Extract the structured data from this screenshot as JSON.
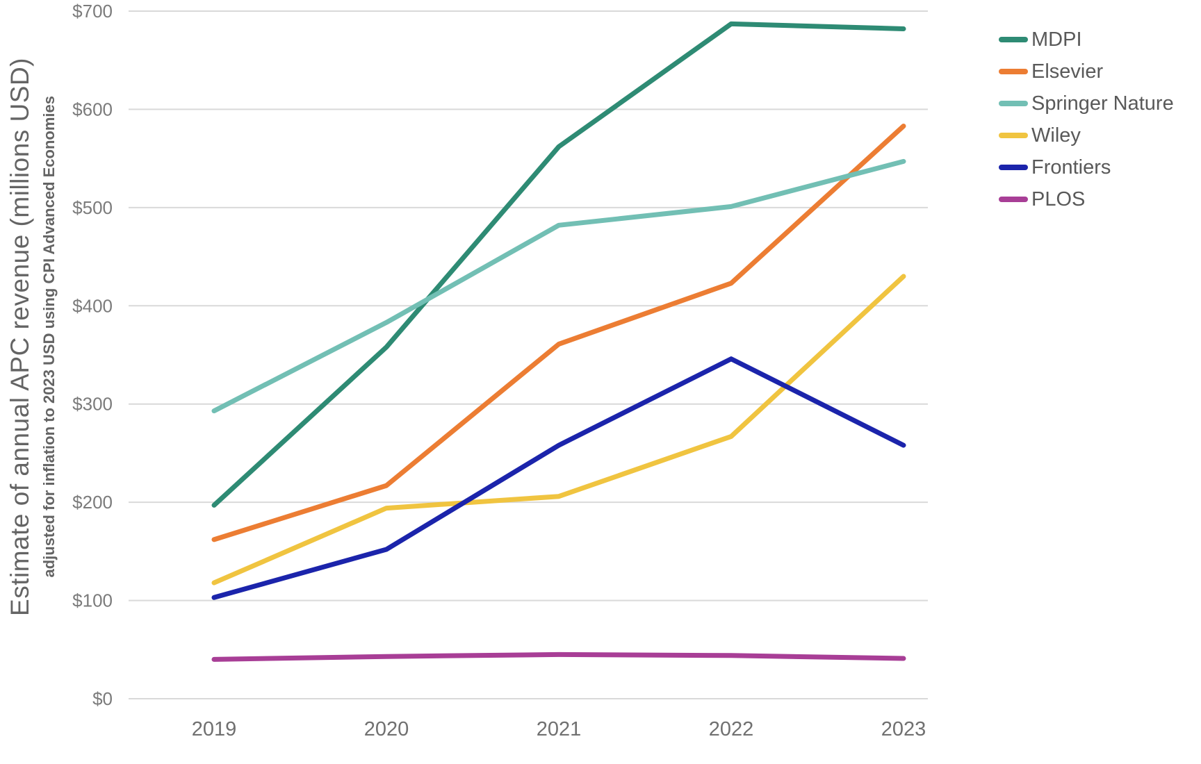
{
  "chart_data": {
    "type": "line",
    "title": "",
    "ylabel": "Estimate of annual APC revenue (millions USD)",
    "ylabel_sub": "adjusted for inflation to 2023 USD using CPI Advanced Economies",
    "categories": [
      "2019",
      "2020",
      "2021",
      "2022",
      "2023"
    ],
    "series": [
      {
        "name": "MDPI",
        "color": "#2E8B74",
        "values": [
          197,
          358,
          562,
          687,
          682
        ]
      },
      {
        "name": "Elsevier",
        "color": "#EC7D33",
        "values": [
          162,
          217,
          361,
          423,
          583
        ]
      },
      {
        "name": "Springer Nature",
        "color": "#72BFB4",
        "values": [
          293,
          383,
          482,
          501,
          547
        ]
      },
      {
        "name": "Wiley",
        "color": "#F0C440",
        "values": [
          118,
          194,
          206,
          267,
          430
        ]
      },
      {
        "name": "Frontiers",
        "color": "#1B24AB",
        "values": [
          103,
          152,
          258,
          346,
          258
        ]
      },
      {
        "name": "PLOS",
        "color": "#A83E96",
        "values": [
          40,
          43,
          45,
          44,
          41
        ]
      }
    ],
    "yticks": [
      0,
      100,
      200,
      300,
      400,
      500,
      600,
      700
    ],
    "ytick_labels": [
      "$0",
      "$100",
      "$200",
      "$300",
      "$400",
      "$500",
      "$600",
      "$700"
    ],
    "ylim": [
      0,
      700
    ],
    "grid": true,
    "legend_position": "right"
  },
  "colors": {
    "gridline": "#d9d9d9",
    "ytick_text": "#7b7b7b",
    "xtick_text": "#707070",
    "legend_text": "#595959",
    "axis_title_text": "#646464"
  }
}
